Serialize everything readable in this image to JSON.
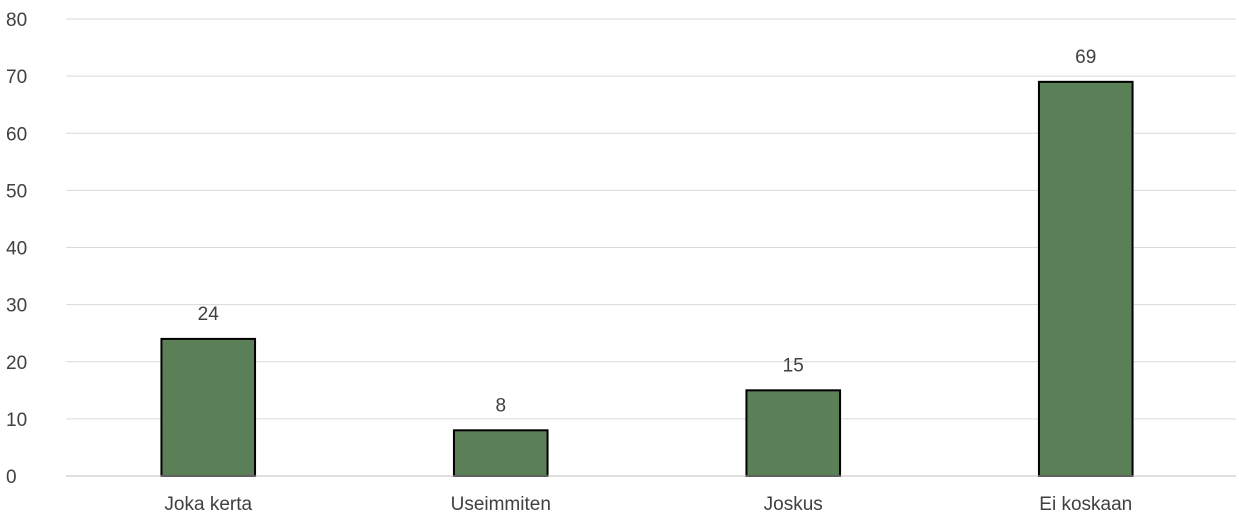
{
  "chart_data": {
    "type": "bar",
    "categories": [
      "Joka kerta",
      "Useimmiten",
      "Joskus",
      "Ei koskaan"
    ],
    "values": [
      24,
      8,
      15,
      69
    ],
    "title": "",
    "xlabel": "",
    "ylabel": "",
    "ylim": [
      0,
      80
    ],
    "yticks": [
      0,
      10,
      20,
      30,
      40,
      50,
      60,
      70,
      80
    ],
    "grid": true,
    "data_labels": true,
    "legend": "none",
    "bar_color": "#5b7f57",
    "bar_edge_color": "#000000",
    "grid_color": "#d9d9d9",
    "text_color": "#404040"
  }
}
